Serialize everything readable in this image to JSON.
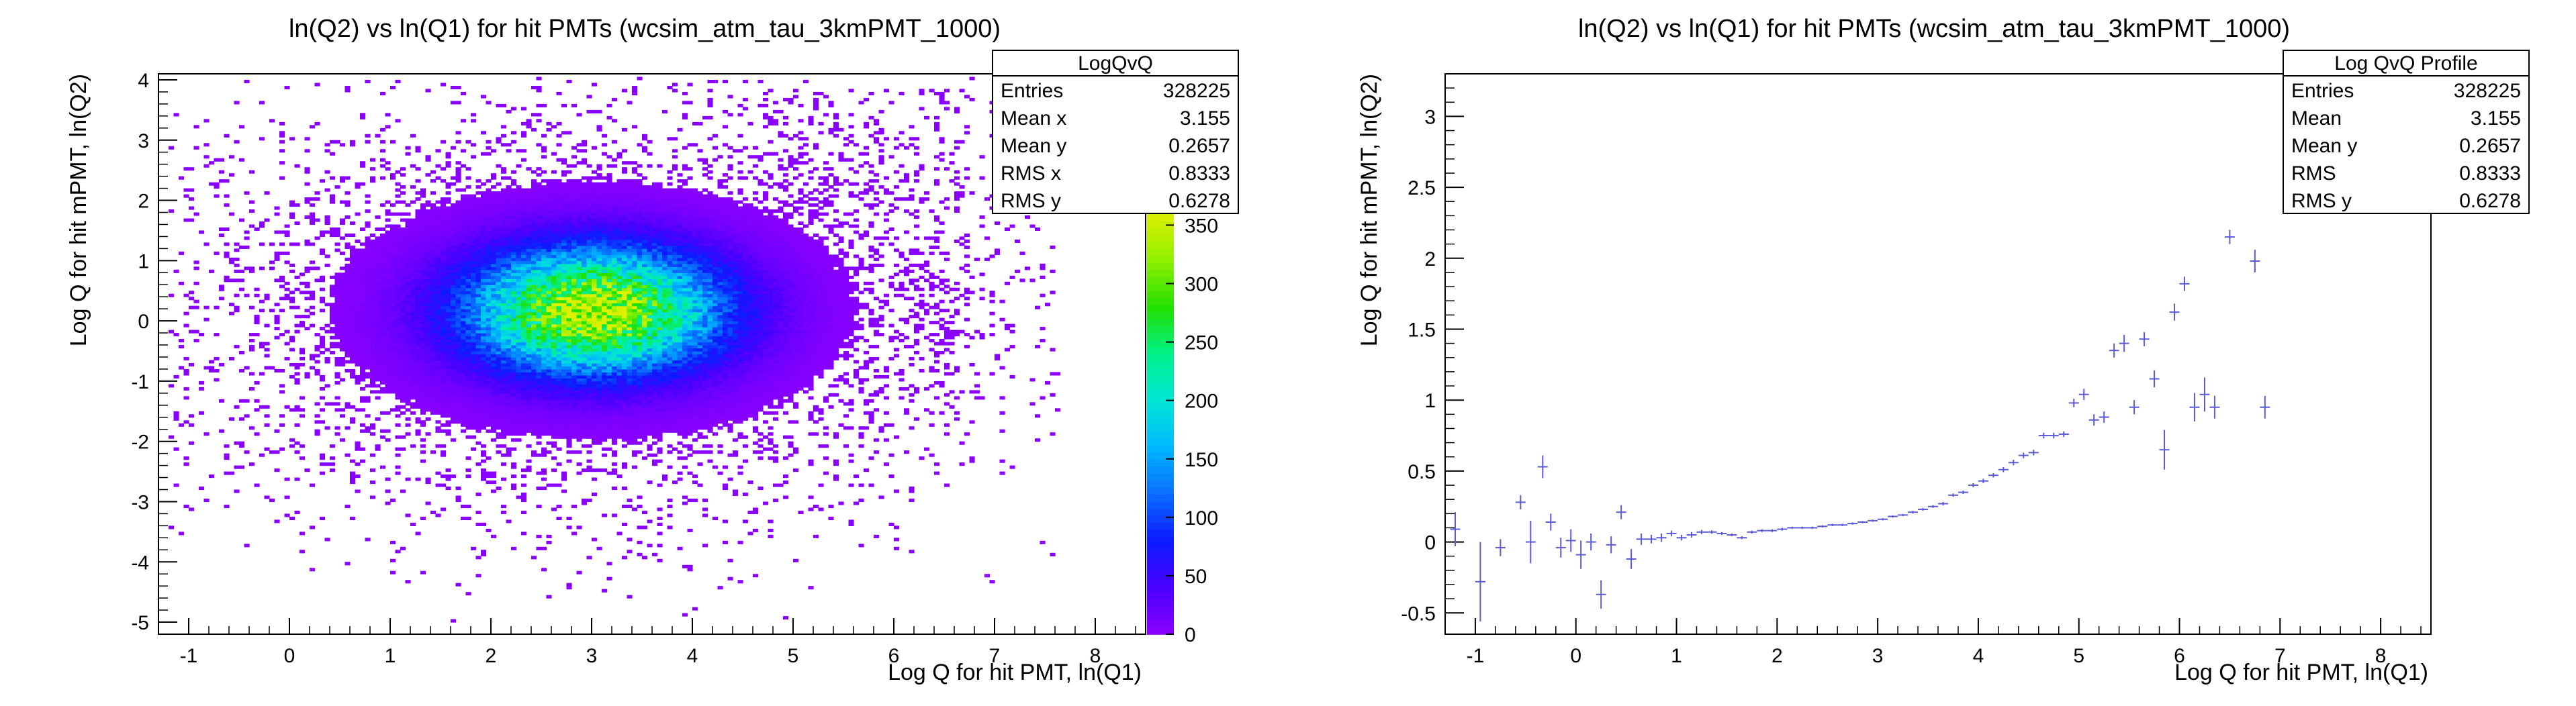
{
  "chart_data": [
    {
      "type": "heatmap",
      "title": "ln(Q2) vs ln(Q1) for hit PMTs (wcsim_atm_tau_3kmPMT_1000)",
      "xlabel": "Log Q for hit PMT, ln(Q1)",
      "ylabel": "Log Q for hit mPMT, ln(Q2)",
      "xlim": [
        -1.3,
        8.5
      ],
      "ylim": [
        -5.2,
        4.1
      ],
      "x_ticks": [
        "-1",
        "0",
        "1",
        "2",
        "3",
        "4",
        "5",
        "6",
        "7",
        "8"
      ],
      "y_ticks": [
        "-5",
        "-4",
        "-3",
        "-2",
        "-1",
        "0",
        "1",
        "2",
        "3",
        "4"
      ],
      "colorbar": {
        "range": [
          0,
          360
        ],
        "ticks": [
          "0",
          "50",
          "100",
          "150",
          "200",
          "250",
          "300",
          "350"
        ],
        "colors": [
          "#8c00ff",
          "#4a00ff",
          "#0b1aff",
          "#0a6cff",
          "#00b8ff",
          "#00e6d6",
          "#00f08a",
          "#22e000",
          "#8ef000",
          "#ddf000"
        ]
      },
      "peak": {
        "x": 3.0,
        "y": 0.15,
        "value": 350
      },
      "stats": {
        "name": "LogQvQ",
        "rows": [
          {
            "label": "Entries",
            "value": "328225"
          },
          {
            "label": "Mean x",
            "value": "3.155"
          },
          {
            "label": "Mean y",
            "value": "0.2657"
          },
          {
            "label": "RMS x",
            "value": "0.8333"
          },
          {
            "label": "RMS y",
            "value": "0.6278"
          }
        ]
      }
    },
    {
      "type": "scatter",
      "title": "ln(Q2) vs ln(Q1) for hit PMTs (wcsim_atm_tau_3kmPMT_1000)",
      "xlabel": "Log Q for hit PMT, ln(Q1)",
      "ylabel": "Log Q for hit mPMT, ln(Q2)",
      "xlim": [
        -1.3,
        8.5
      ],
      "ylim": [
        -0.65,
        3.3
      ],
      "x_ticks": [
        "-1",
        "0",
        "1",
        "2",
        "3",
        "4",
        "5",
        "6",
        "7",
        "8"
      ],
      "y_ticks": [
        "-0.5",
        "0",
        "0.5",
        "1",
        "1.5",
        "2",
        "2.5",
        "3"
      ],
      "color": "#5a5ad6",
      "points": [
        {
          "x": -1.2,
          "y": 0.09,
          "e": 0.12
        },
        {
          "x": -0.95,
          "y": -0.28,
          "e": 0.28
        },
        {
          "x": -0.75,
          "y": -0.04,
          "e": 0.06
        },
        {
          "x": -0.55,
          "y": 0.28,
          "e": 0.05
        },
        {
          "x": -0.45,
          "y": 0.0,
          "e": 0.15
        },
        {
          "x": -0.33,
          "y": 0.53,
          "e": 0.08
        },
        {
          "x": -0.25,
          "y": 0.14,
          "e": 0.06
        },
        {
          "x": -0.15,
          "y": -0.04,
          "e": 0.07
        },
        {
          "x": -0.05,
          "y": 0.01,
          "e": 0.08
        },
        {
          "x": 0.05,
          "y": -0.09,
          "e": 0.1
        },
        {
          "x": 0.15,
          "y": 0.0,
          "e": 0.06
        },
        {
          "x": 0.25,
          "y": -0.37,
          "e": 0.1
        },
        {
          "x": 0.35,
          "y": -0.02,
          "e": 0.06
        },
        {
          "x": 0.45,
          "y": 0.21,
          "e": 0.05
        },
        {
          "x": 0.55,
          "y": -0.12,
          "e": 0.07
        },
        {
          "x": 0.65,
          "y": 0.02,
          "e": 0.04
        },
        {
          "x": 0.75,
          "y": 0.02,
          "e": 0.03
        },
        {
          "x": 0.85,
          "y": 0.03,
          "e": 0.03
        },
        {
          "x": 0.95,
          "y": 0.06,
          "e": 0.02
        },
        {
          "x": 1.05,
          "y": 0.03,
          "e": 0.02
        },
        {
          "x": 1.15,
          "y": 0.05,
          "e": 0.02
        },
        {
          "x": 1.25,
          "y": 0.07,
          "e": 0.015
        },
        {
          "x": 1.35,
          "y": 0.07,
          "e": 0.012
        },
        {
          "x": 1.45,
          "y": 0.06,
          "e": 0.01
        },
        {
          "x": 1.55,
          "y": 0.05,
          "e": 0.01
        },
        {
          "x": 1.65,
          "y": 0.03,
          "e": 0.01
        },
        {
          "x": 1.75,
          "y": 0.07,
          "e": 0.01
        },
        {
          "x": 1.85,
          "y": 0.08,
          "e": 0.01
        },
        {
          "x": 1.95,
          "y": 0.08,
          "e": 0.01
        },
        {
          "x": 2.05,
          "y": 0.09,
          "e": 0.01
        },
        {
          "x": 2.15,
          "y": 0.1,
          "e": 0.008
        },
        {
          "x": 2.25,
          "y": 0.1,
          "e": 0.008
        },
        {
          "x": 2.35,
          "y": 0.1,
          "e": 0.008
        },
        {
          "x": 2.45,
          "y": 0.11,
          "e": 0.008
        },
        {
          "x": 2.55,
          "y": 0.12,
          "e": 0.008
        },
        {
          "x": 2.65,
          "y": 0.12,
          "e": 0.008
        },
        {
          "x": 2.75,
          "y": 0.13,
          "e": 0.008
        },
        {
          "x": 2.85,
          "y": 0.14,
          "e": 0.008
        },
        {
          "x": 2.95,
          "y": 0.15,
          "e": 0.008
        },
        {
          "x": 3.05,
          "y": 0.16,
          "e": 0.008
        },
        {
          "x": 3.15,
          "y": 0.18,
          "e": 0.008
        },
        {
          "x": 3.25,
          "y": 0.19,
          "e": 0.008
        },
        {
          "x": 3.35,
          "y": 0.21,
          "e": 0.01
        },
        {
          "x": 3.45,
          "y": 0.23,
          "e": 0.01
        },
        {
          "x": 3.55,
          "y": 0.25,
          "e": 0.01
        },
        {
          "x": 3.65,
          "y": 0.27,
          "e": 0.012
        },
        {
          "x": 3.75,
          "y": 0.33,
          "e": 0.012
        },
        {
          "x": 3.85,
          "y": 0.35,
          "e": 0.012
        },
        {
          "x": 3.95,
          "y": 0.4,
          "e": 0.015
        },
        {
          "x": 4.05,
          "y": 0.43,
          "e": 0.015
        },
        {
          "x": 4.15,
          "y": 0.47,
          "e": 0.015
        },
        {
          "x": 4.25,
          "y": 0.51,
          "e": 0.018
        },
        {
          "x": 4.35,
          "y": 0.56,
          "e": 0.02
        },
        {
          "x": 4.45,
          "y": 0.61,
          "e": 0.02
        },
        {
          "x": 4.55,
          "y": 0.63,
          "e": 0.02
        },
        {
          "x": 4.65,
          "y": 0.75,
          "e": 0.02
        },
        {
          "x": 4.75,
          "y": 0.75,
          "e": 0.02
        },
        {
          "x": 4.85,
          "y": 0.76,
          "e": 0.02
        },
        {
          "x": 4.95,
          "y": 0.98,
          "e": 0.03
        },
        {
          "x": 5.05,
          "y": 1.04,
          "e": 0.04
        },
        {
          "x": 5.15,
          "y": 0.86,
          "e": 0.04
        },
        {
          "x": 5.25,
          "y": 0.88,
          "e": 0.04
        },
        {
          "x": 5.35,
          "y": 1.35,
          "e": 0.05
        },
        {
          "x": 5.45,
          "y": 1.4,
          "e": 0.06
        },
        {
          "x": 5.55,
          "y": 0.95,
          "e": 0.05
        },
        {
          "x": 5.65,
          "y": 1.43,
          "e": 0.05
        },
        {
          "x": 5.75,
          "y": 1.15,
          "e": 0.06
        },
        {
          "x": 5.85,
          "y": 0.65,
          "e": 0.14
        },
        {
          "x": 5.95,
          "y": 1.62,
          "e": 0.06
        },
        {
          "x": 6.05,
          "y": 1.82,
          "e": 0.05
        },
        {
          "x": 6.15,
          "y": 0.95,
          "e": 0.1
        },
        {
          "x": 6.25,
          "y": 1.04,
          "e": 0.12
        },
        {
          "x": 6.35,
          "y": 0.95,
          "e": 0.08
        },
        {
          "x": 6.5,
          "y": 2.15,
          "e": 0.05
        },
        {
          "x": 6.75,
          "y": 1.98,
          "e": 0.08
        },
        {
          "x": 6.85,
          "y": 0.95,
          "e": 0.08
        }
      ],
      "stats": {
        "name": "Log QvQ Profile",
        "rows": [
          {
            "label": "Entries",
            "value": "328225"
          },
          {
            "label": "Mean",
            "value": "3.155"
          },
          {
            "label": "Mean y",
            "value": "0.2657"
          },
          {
            "label": "RMS",
            "value": "0.8333"
          },
          {
            "label": "RMS y",
            "value": "0.6278"
          }
        ]
      }
    }
  ]
}
